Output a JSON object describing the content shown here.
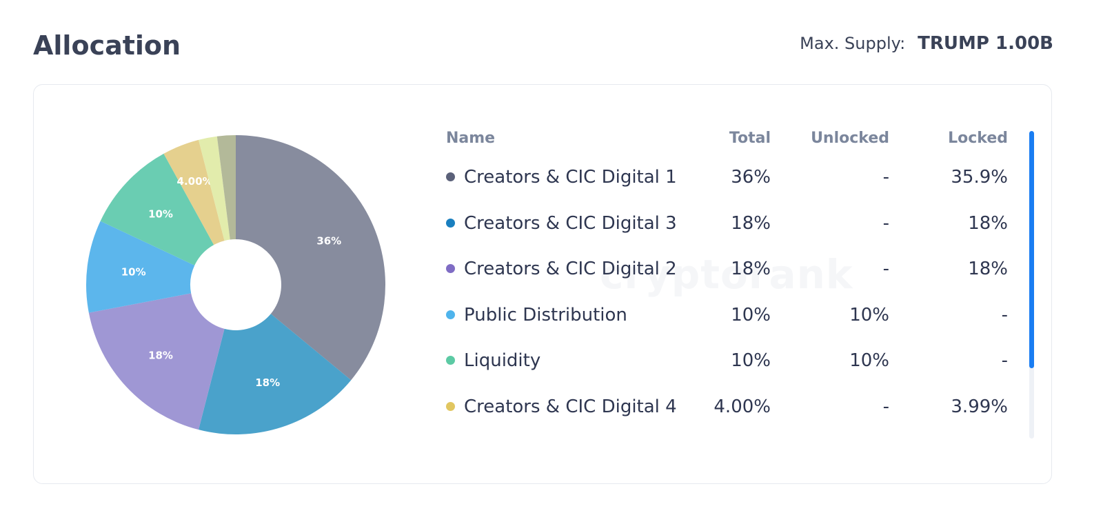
{
  "header": {
    "title": "Allocation",
    "max_supply_label": "Max. Supply:",
    "max_supply_value": "TRUMP 1.00B"
  },
  "watermark": "cryptorank",
  "table": {
    "columns": [
      "Name",
      "Total",
      "Unlocked",
      "Locked"
    ],
    "rows": [
      {
        "name": "Creators & CIC Digital 1",
        "total": "36%",
        "unlocked": "-",
        "locked": "35.9%",
        "color": "#5b6179"
      },
      {
        "name": "Creators & CIC Digital 3",
        "total": "18%",
        "unlocked": "-",
        "locked": "18%",
        "color": "#1a7fbf"
      },
      {
        "name": "Creators & CIC Digital 2",
        "total": "18%",
        "unlocked": "-",
        "locked": "18%",
        "color": "#7f6cc4"
      },
      {
        "name": "Public Distribution",
        "total": "10%",
        "unlocked": "10%",
        "locked": "-",
        "color": "#4fb4ec"
      },
      {
        "name": "Liquidity",
        "total": "10%",
        "unlocked": "10%",
        "locked": "-",
        "color": "#5ccaa4"
      },
      {
        "name": "Creators & CIC Digital 4",
        "total": "4.00%",
        "unlocked": "-",
        "locked": "3.99%",
        "color": "#e1c660"
      }
    ]
  },
  "chart_data": {
    "type": "pie",
    "donut": true,
    "slices": [
      {
        "label": "36%",
        "value": 36,
        "color": "#878c9e"
      },
      {
        "label": "18%",
        "value": 18,
        "color": "#4aa2cb"
      },
      {
        "label": "18%",
        "value": 18,
        "color": "#9f97d4"
      },
      {
        "label": "10%",
        "value": 10,
        "color": "#5cb6ec"
      },
      {
        "label": "10%",
        "value": 10,
        "color": "#6acdb2"
      },
      {
        "label": "4.00%",
        "value": 4,
        "color": "#e5d08e"
      },
      {
        "label": "",
        "value": 2,
        "color": "#e2ecac"
      },
      {
        "label": "",
        "value": 2,
        "color": "#b3b999"
      }
    ]
  }
}
